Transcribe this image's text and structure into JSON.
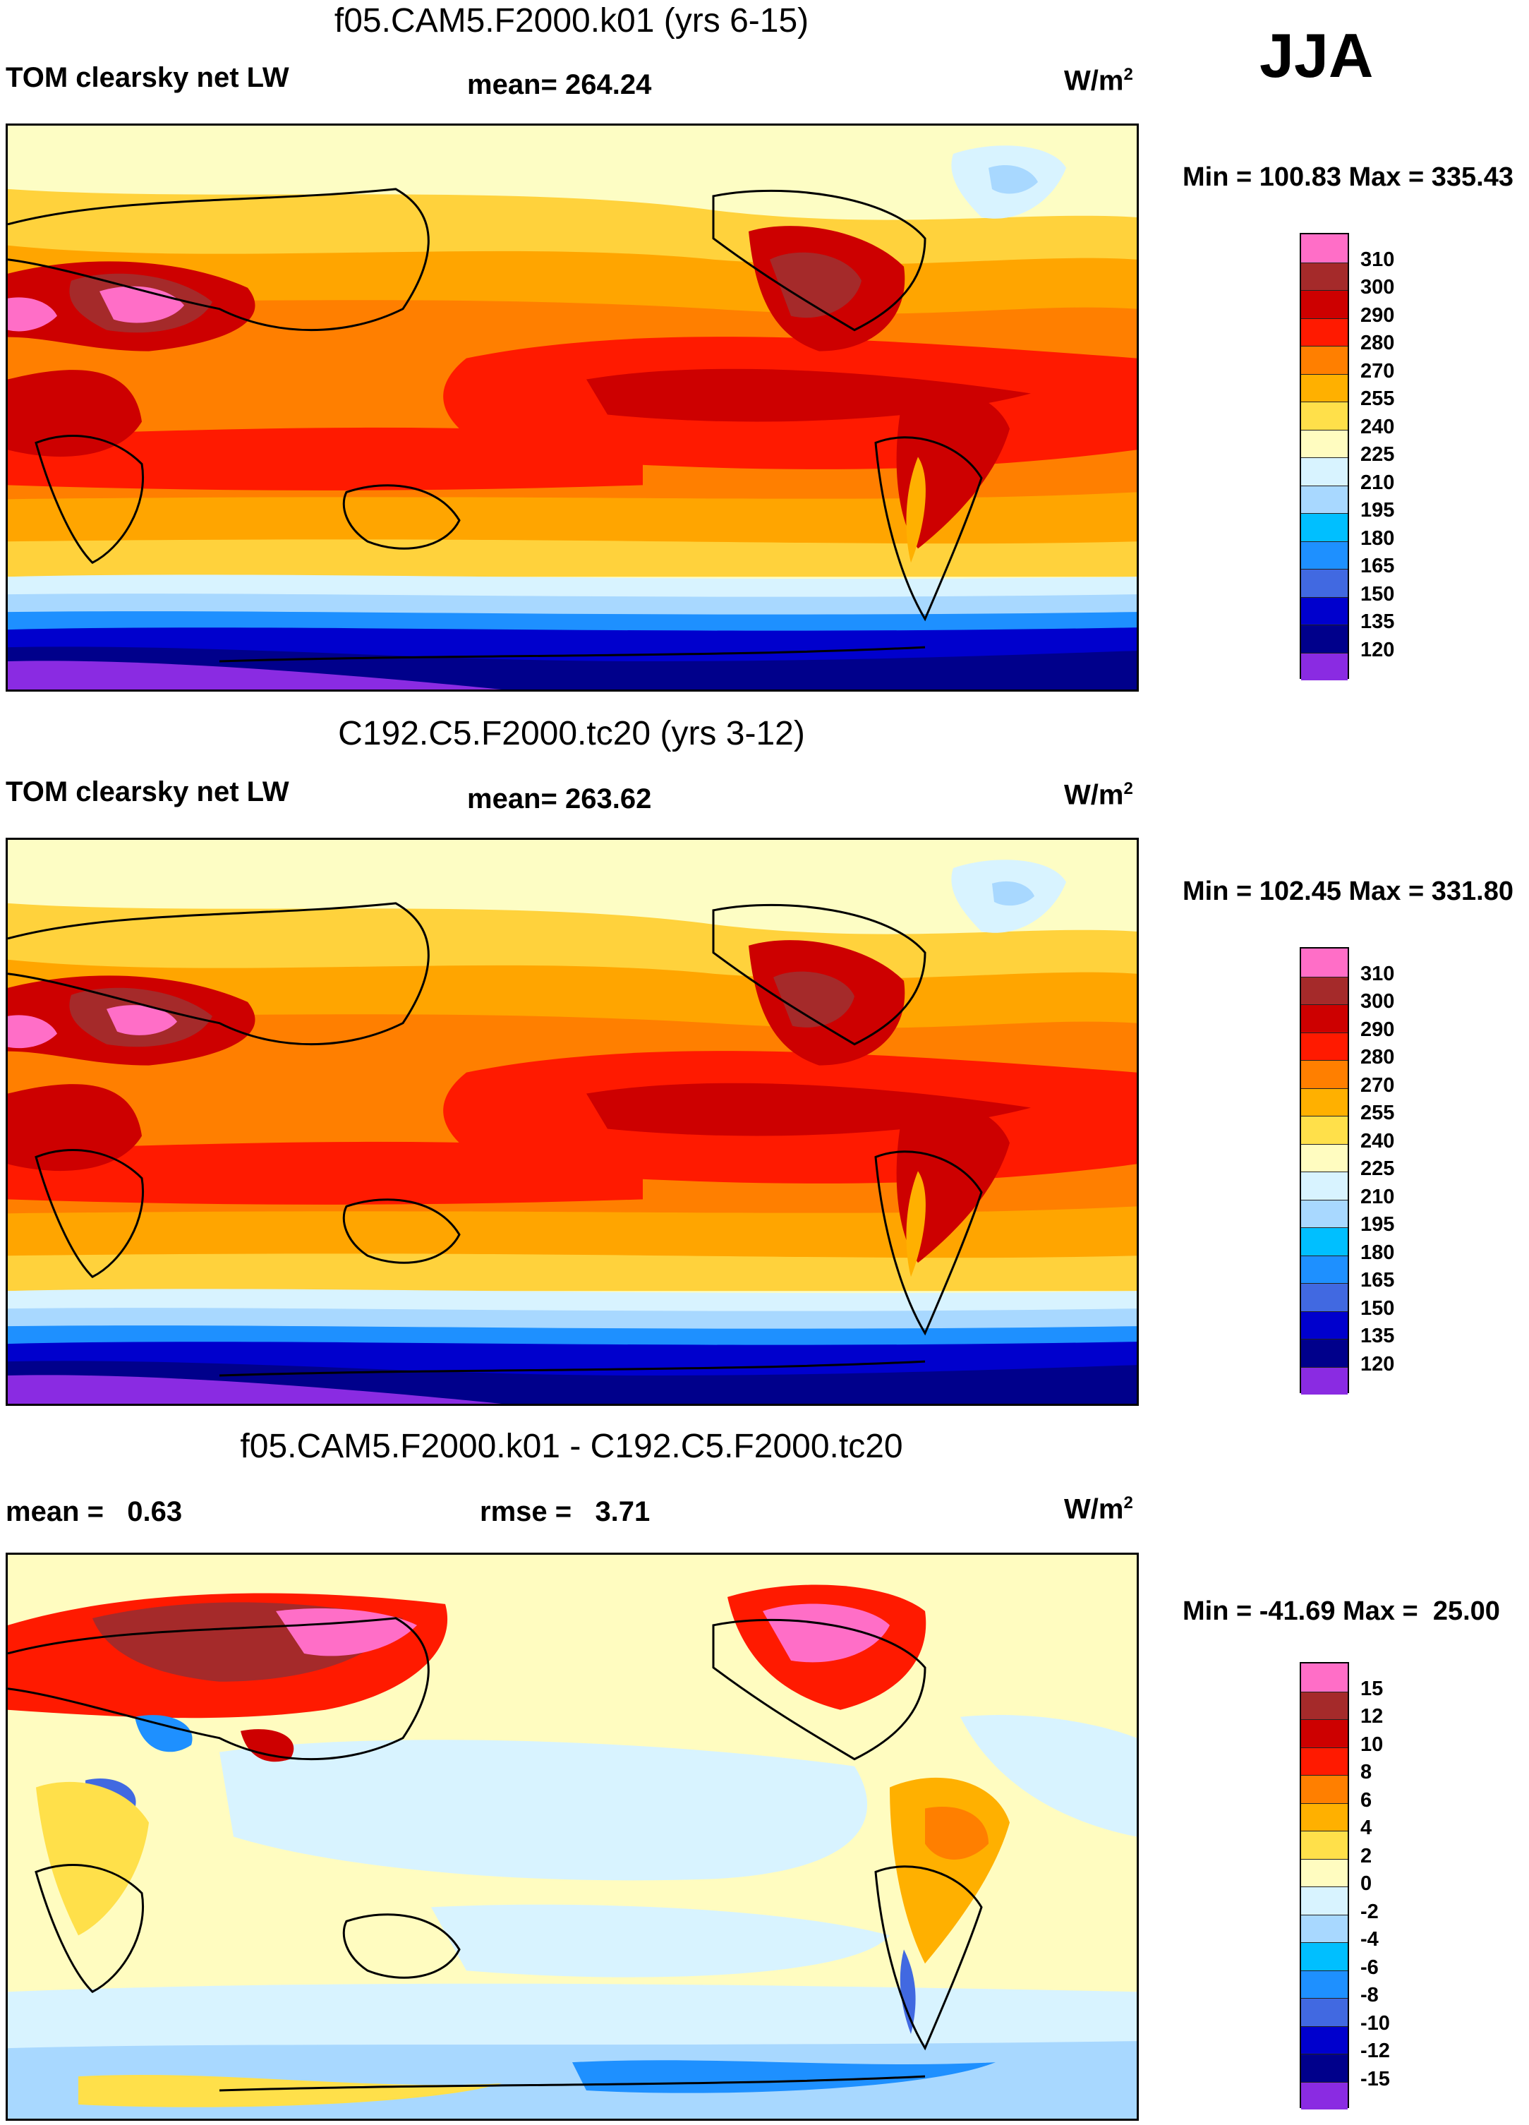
{
  "season": "JJA",
  "panels": [
    {
      "title": "f05.CAM5.F2000.k01 (yrs 6-15)",
      "left_label": "TOM clearsky net LW",
      "center_label": "mean= 264.24",
      "units": "W/m",
      "units_sup": "2",
      "minmax": "Min = 100.83 Max = 335.43",
      "colorbar": {
        "colors": [
          "#ff6ec7",
          "#a52a2a",
          "#cd0000",
          "#ff1a00",
          "#ff7f00",
          "#ffb000",
          "#ffe04a",
          "#fffcc0",
          "#d8f3ff",
          "#a8d8ff",
          "#00bfff",
          "#1e90ff",
          "#4169e1",
          "#0000cd",
          "#00008b",
          "#8a2be2"
        ],
        "ticks": [
          "310",
          "300",
          "290",
          "280",
          "270",
          "255",
          "240",
          "225",
          "210",
          "195",
          "180",
          "165",
          "150",
          "135",
          "120"
        ]
      }
    },
    {
      "title": "C192.C5.F2000.tc20 (yrs 3-12)",
      "left_label": "TOM clearsky net LW",
      "center_label": "mean= 263.62",
      "units": "W/m",
      "units_sup": "2",
      "minmax": "Min = 102.45 Max = 331.80",
      "colorbar": {
        "colors": [
          "#ff6ec7",
          "#a52a2a",
          "#cd0000",
          "#ff1a00",
          "#ff7f00",
          "#ffb000",
          "#ffe04a",
          "#fffcc0",
          "#d8f3ff",
          "#a8d8ff",
          "#00bfff",
          "#1e90ff",
          "#4169e1",
          "#0000cd",
          "#00008b",
          "#8a2be2"
        ],
        "ticks": [
          "310",
          "300",
          "290",
          "280",
          "270",
          "255",
          "240",
          "225",
          "210",
          "195",
          "180",
          "165",
          "150",
          "135",
          "120"
        ]
      }
    },
    {
      "title": "f05.CAM5.F2000.k01 - C192.C5.F2000.tc20",
      "left_label": "mean =   0.63",
      "center_label": "rmse =   3.71",
      "units": "W/m",
      "units_sup": "2",
      "minmax": "Min = -41.69 Max =  25.00",
      "colorbar": {
        "colors": [
          "#ff6ec7",
          "#a52a2a",
          "#cd0000",
          "#ff1a00",
          "#ff7f00",
          "#ffb000",
          "#ffe04a",
          "#fffcc0",
          "#d8f3ff",
          "#a8d8ff",
          "#00bfff",
          "#1e90ff",
          "#4169e1",
          "#0000cd",
          "#00008b",
          "#8a2be2"
        ],
        "ticks": [
          "15",
          "12",
          "10",
          "8",
          "6",
          "4",
          "2",
          "0",
          "-2",
          "-4",
          "-6",
          "-8",
          "-10",
          "-12",
          "-15"
        ]
      }
    }
  ]
}
